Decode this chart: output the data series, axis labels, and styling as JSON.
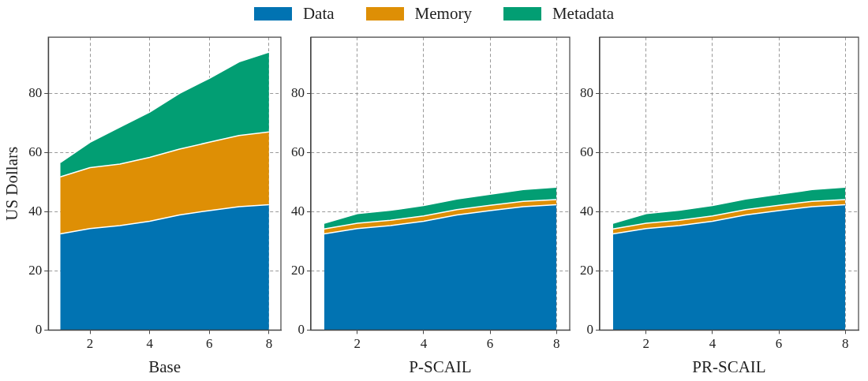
{
  "chart_data": [
    {
      "type": "area",
      "stacked": true,
      "xlabel": "Base",
      "ylabel": "US Dollars",
      "x": [
        1,
        2,
        3,
        4,
        5,
        6,
        7,
        8
      ],
      "xlim": [
        0.6,
        8.4
      ],
      "xticks": [
        2,
        4,
        6,
        8
      ],
      "ylim": [
        0,
        99
      ],
      "yticks": [
        0,
        20,
        40,
        60,
        80
      ],
      "grid": true,
      "legend": "top",
      "series": [
        {
          "name": "Data",
          "color": "#0173b2",
          "values": [
            32.5,
            34.3,
            35.3,
            36.8,
            38.9,
            40.4,
            41.7,
            42.4
          ]
        },
        {
          "name": "Memory",
          "color": "#de8f05",
          "values": [
            19.3,
            20.6,
            20.8,
            21.6,
            22.3,
            23.1,
            24.1,
            24.6
          ]
        },
        {
          "name": "Metadata",
          "color": "#029e73",
          "values": [
            4.8,
            8.6,
            12.5,
            15.3,
            18.8,
            21.6,
            24.9,
            27.0
          ]
        }
      ]
    },
    {
      "type": "area",
      "stacked": true,
      "xlabel": "P-SCAIL",
      "x": [
        1,
        2,
        3,
        4,
        5,
        6,
        7,
        8
      ],
      "xlim": [
        0.6,
        8.4
      ],
      "xticks": [
        2,
        4,
        6,
        8
      ],
      "ylim": [
        0,
        99
      ],
      "yticks": [
        0,
        20,
        40,
        60,
        80
      ],
      "grid": true,
      "series": [
        {
          "color": "#0173b2",
          "values": [
            32.5,
            34.3,
            35.3,
            36.8,
            38.9,
            40.4,
            41.7,
            42.4
          ]
        },
        {
          "color": "#de8f05",
          "values": [
            1.7,
            1.8,
            1.8,
            1.8,
            1.8,
            1.8,
            1.8,
            1.7
          ]
        },
        {
          "color": "#029e73",
          "values": [
            1.9,
            3.3,
            3.4,
            3.5,
            3.6,
            3.7,
            4.0,
            4.2
          ]
        }
      ]
    },
    {
      "type": "area",
      "stacked": true,
      "xlabel": "PR-SCAIL",
      "x": [
        1,
        2,
        3,
        4,
        5,
        6,
        7,
        8
      ],
      "xlim": [
        0.6,
        8.4
      ],
      "xticks": [
        2,
        4,
        6,
        8
      ],
      "ylim": [
        0,
        99
      ],
      "yticks": [
        0,
        20,
        40,
        60,
        80
      ],
      "grid": true,
      "series": [
        {
          "color": "#0173b2",
          "values": [
            32.5,
            34.3,
            35.3,
            36.8,
            38.9,
            40.4,
            41.7,
            42.4
          ]
        },
        {
          "color": "#de8f05",
          "values": [
            1.7,
            1.8,
            1.8,
            1.8,
            1.8,
            1.8,
            1.8,
            1.7
          ]
        },
        {
          "color": "#029e73",
          "values": [
            1.9,
            3.3,
            3.4,
            3.5,
            3.6,
            3.7,
            4.0,
            4.2
          ]
        }
      ]
    }
  ]
}
